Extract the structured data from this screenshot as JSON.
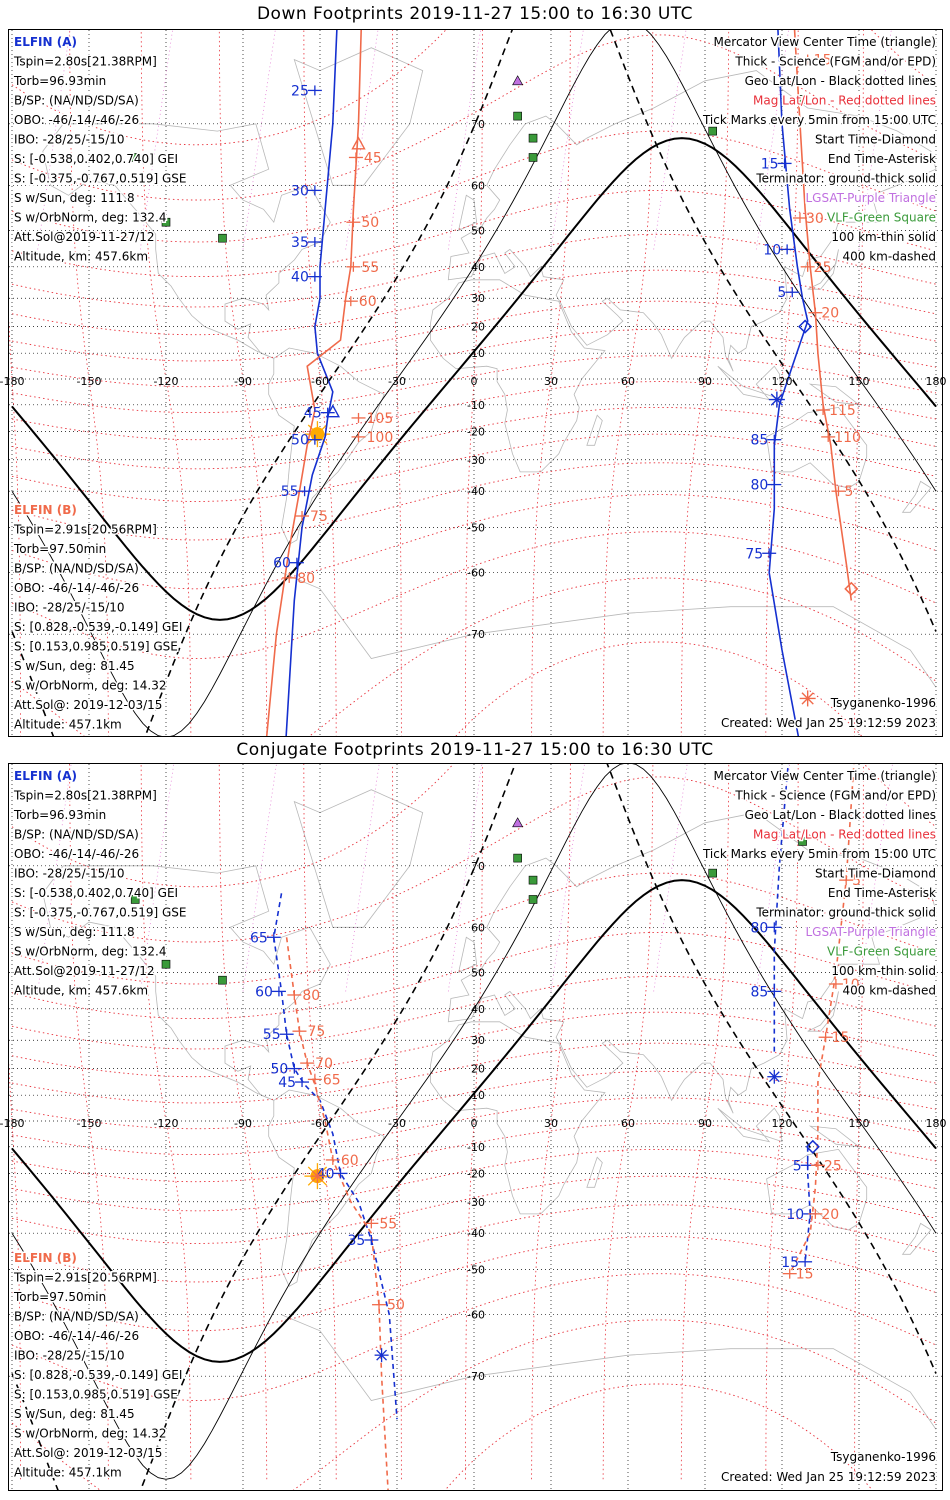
{
  "panels": [
    {
      "id": "down",
      "title": "Down Footprints 2019-11-27 15:00 to 16:30 UTC",
      "left_info_a": {
        "header": "ELFIN (A)",
        "lines": [
          "Tspin=2.80s[21.38RPM]",
          "Torb=96.93min",
          "B/SP: (NA/ND/SD/SA)",
          "OBO: -46/-14/-46/-26",
          "IBO: -28/25/-15/10",
          "S: [-0.538,0.402,0.740] GEI",
          "S: [-0.375,-0.767,0.519] GSE",
          "S w/Sun, deg: 111.8",
          "S w/OrbNorm, deg: 132.4",
          "Att.Sol@2019-11-27/12",
          "Altitude, km: 457.6km"
        ]
      },
      "left_info_b": {
        "header": "ELFIN (B)",
        "lines": [
          "Tspin=2.91s[20.56RPM]",
          "Torb=97.50min",
          "B/SP: (NA/ND/SD/SA)",
          "OBO: -46/-14/-46/-26",
          "IBO: -28/25/-15/10",
          "S: [0.828,-0.539,-0.149] GEI",
          "S: [0.153,0.985,0.519] GSE",
          "S w/Sun, deg: 81.45",
          "S w/OrbNorm, deg: 14.32",
          "Att.Sol@: 2019-12-03/15",
          "Altitude: 457.1km"
        ]
      },
      "legend": [
        {
          "text": "Mercator View Center Time (triangle)",
          "color": "#000000"
        },
        {
          "text": "Thick - Science (FGM and/or EPD)",
          "color": "#000000"
        },
        {
          "text": "Geo Lat/Lon - Black dotted lines",
          "color": "#000000"
        },
        {
          "text": "Mag Lat/Lon - Red dotted lines",
          "color": "#e8303a"
        },
        {
          "text": "Tick Marks every 5min from 15:00 UTC",
          "color": "#000000"
        },
        {
          "text": "Start Time-Diamond",
          "color": "#000000"
        },
        {
          "text": "End Time-Asterisk",
          "color": "#000000"
        },
        {
          "text": "Terminator: ground-thick solid",
          "color": "#000000"
        },
        {
          "text": "LGSAT-Purple Triangle",
          "color": "#c070e0"
        },
        {
          "text": "VLF-Green Square",
          "color": "#3a9a3a"
        },
        {
          "text": "100 km-thin solid",
          "color": "#000000"
        },
        {
          "text": "400 km-dashed",
          "color": "#000000"
        }
      ],
      "model": "Tsyganenko-1996",
      "created": "Created: Wed Jan 25 19:12:59 2023",
      "tracks": {
        "a_main": {
          "ticks": [
            [
              "25",
              -62,
              74
            ],
            [
              "30",
              -62,
              59
            ],
            [
              "35",
              -62,
              47
            ],
            [
              "40",
              -62,
              37
            ],
            [
              "45",
              -57,
              -13
            ],
            [
              "50",
              -62,
              -23
            ],
            [
              "55",
              -66,
              -40
            ],
            [
              "60",
              -69,
              -58
            ]
          ]
        },
        "b_main": {
          "ticks": [
            [
              "45",
              -46,
              65
            ],
            [
              "50",
              -47,
              52
            ],
            [
              "55",
              -47,
              40
            ],
            [
              "60",
              -48,
              29
            ],
            [
              "105",
              -45,
              -15
            ],
            [
              "100",
              -45,
              -22
            ],
            [
              "75",
              -67,
              -47
            ],
            [
              "80",
              -72,
              -61
            ]
          ]
        },
        "a_right": {
          "ticks": [
            [
              "15",
              121,
              64
            ],
            [
              "10",
              122,
              45
            ],
            [
              "5",
              124,
              32
            ],
            [
              "85",
              117,
              -23
            ],
            [
              "80",
              117,
              -38
            ],
            [
              "75",
              115,
              -56
            ]
          ]
        },
        "b_right": {
          "ticks": [
            [
              "15",
              130,
              77
            ],
            [
              "30",
              127,
              53
            ],
            [
              "25",
              130,
              40
            ],
            [
              "20",
              133,
              25
            ],
            [
              "115",
              136,
              -12
            ],
            [
              "110",
              138,
              -22
            ],
            [
              "5",
              142,
              -40
            ]
          ]
        }
      }
    },
    {
      "id": "conj",
      "title": "Conjugate Footprints 2019-11-27 15:00 to 16:30 UTC",
      "left_info_a": {
        "header": "ELFIN (A)",
        "lines": [
          "Tspin=2.80s[21.38RPM]",
          "Torb=96.93min",
          "B/SP: (NA/ND/SD/SA)",
          "OBO: -46/-14/-46/-26",
          "IBO: -28/25/-15/10",
          "S: [-0.538,0.402,0.740] GEI",
          "S: [-0.375,-0.767,0.519] GSE",
          "S w/Sun, deg: 111.8",
          "S w/OrbNorm, deg: 132.4",
          "Att.Sol@2019-11-27/12",
          "Altitude, km: 457.6km"
        ]
      },
      "left_info_b": {
        "header": "ELFIN (B)",
        "lines": [
          "Tspin=2.91s[20.56RPM]",
          "Torb=97.50min",
          "B/SP: (NA/ND/SD/SA)",
          "OBO: -46/-14/-46/-26",
          "IBO: -28/25/-15/10",
          "S: [0.828,-0.539,-0.149] GEI",
          "S: [0.153,0.985,0.519] GSE",
          "S w/Sun, deg: 81.45",
          "S w/OrbNorm, deg: 14.32",
          "Att.Sol@: 2019-12-03/15",
          "Altitude: 457.1km"
        ]
      },
      "legend": [
        {
          "text": "Mercator View Center Time (triangle)",
          "color": "#000000"
        },
        {
          "text": "Thick - Science (FGM and/or EPD)",
          "color": "#000000"
        },
        {
          "text": "Geo Lat/Lon - Black dotted lines",
          "color": "#000000"
        },
        {
          "text": "Mag Lat/Lon - Red dotted lines",
          "color": "#e8303a"
        },
        {
          "text": "Tick Marks every 5min from 15:00 UTC",
          "color": "#000000"
        },
        {
          "text": "Start Time-Diamond",
          "color": "#000000"
        },
        {
          "text": "End Time-Asterisk",
          "color": "#000000"
        },
        {
          "text": "Terminator: ground-thick solid",
          "color": "#000000"
        },
        {
          "text": "LGSAT-Purple Triangle",
          "color": "#c070e0"
        },
        {
          "text": "VLF-Green Square",
          "color": "#3a9a3a"
        },
        {
          "text": "100 km-thin solid",
          "color": "#000000"
        },
        {
          "text": "400 km-dashed",
          "color": "#000000"
        }
      ],
      "model": "Tsyganenko-1996",
      "created": "Created: Wed Jan 25 19:12:59 2023",
      "tracks": {
        "a_main": {
          "ticks": [
            [
              "65",
              -78,
              58
            ],
            [
              "60",
              -76,
              45
            ],
            [
              "55",
              -73,
              32
            ],
            [
              "50",
              -70,
              20
            ],
            [
              "45",
              -67,
              15
            ],
            [
              "40",
              -52,
              -20
            ],
            [
              "35",
              -40,
              -42
            ]
          ]
        },
        "b_main": {
          "ticks": [
            [
              "80",
              -70,
              44
            ],
            [
              "75",
              -68,
              33
            ],
            [
              "70",
              -65,
              22
            ],
            [
              "65",
              -62,
              16
            ],
            [
              "60",
              -55,
              -15
            ],
            [
              "55",
              -40,
              -37
            ],
            [
              "50",
              -37,
              -58
            ]
          ]
        },
        "a_right": {
          "ticks": [
            [
              "80",
              117,
              60
            ],
            [
              "85",
              117,
              45
            ],
            [
              "5",
              130,
              -17
            ],
            [
              "10",
              131,
              -34
            ],
            [
              "15",
              129,
              -48
            ]
          ]
        },
        "b_right": {
          "ticks": [
            [
              "5",
              145,
              68
            ],
            [
              "10",
              141,
              47
            ],
            [
              "15",
              137,
              31
            ],
            [
              "25",
              134,
              -17
            ],
            [
              "20",
              133,
              -34
            ],
            [
              "15",
              123,
              -51
            ]
          ]
        }
      }
    }
  ],
  "axes": {
    "lon_ticks": [
      -180,
      -150,
      -120,
      -90,
      -60,
      -30,
      0,
      30,
      60,
      90,
      120,
      150,
      180
    ],
    "lat_ticks": [
      70,
      60,
      50,
      40,
      30,
      20,
      10,
      0,
      -10,
      -20,
      -30,
      -40,
      -50,
      -60,
      -70
    ]
  },
  "colors": {
    "a": "#1530d0",
    "b": "#f06a4a",
    "mag": "#e8303a",
    "geo": "#000000",
    "land": "#b8b8b8",
    "purple": "#c070e0",
    "green": "#3a9a3a",
    "sun": "#ffaa00"
  }
}
